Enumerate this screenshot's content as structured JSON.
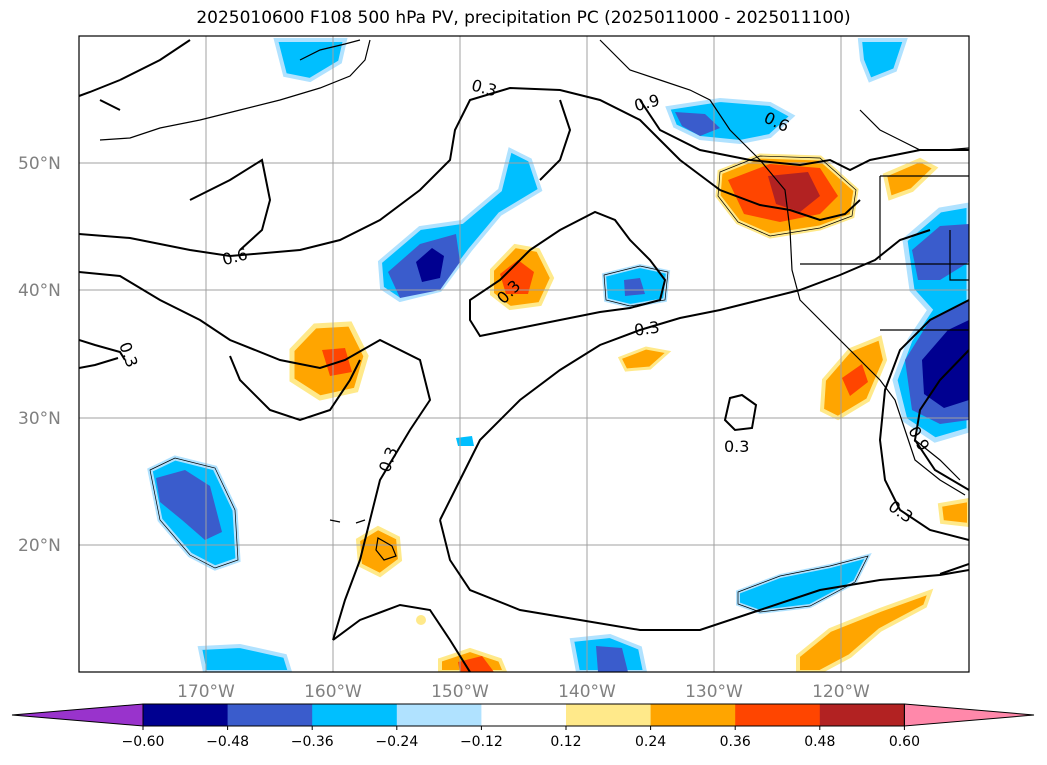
{
  "title": "2025010600 F108 500 hPa PV, precipitation PC (2025011000 - 2025011100)",
  "map": {
    "lat_labels": [
      "50°N",
      "40°N",
      "30°N",
      "20°N"
    ],
    "lon_labels": [
      "170°W",
      "160°W",
      "150°W",
      "140°W",
      "130°W",
      "120°W"
    ],
    "gridlines": true,
    "contour_labels": [
      "0.3",
      "0.9",
      "0.6",
      "0.6",
      "0.3",
      "0.3",
      "0.3",
      "0.3",
      "0.3",
      "0.9",
      "0.3"
    ]
  },
  "colorbar": {
    "ticks": [
      "−0.60",
      "−0.48",
      "−0.36",
      "−0.24",
      "−0.12",
      "0.12",
      "0.24",
      "0.36",
      "0.48",
      "0.60"
    ],
    "colors": [
      "#9933cc",
      "#000090",
      "#3a5ccc",
      "#00bfff",
      "#b0e2ff",
      "#ffffff",
      "#ffe98a",
      "#ffa500",
      "#ff4500",
      "#b22222",
      "#ff88aa"
    ]
  }
}
